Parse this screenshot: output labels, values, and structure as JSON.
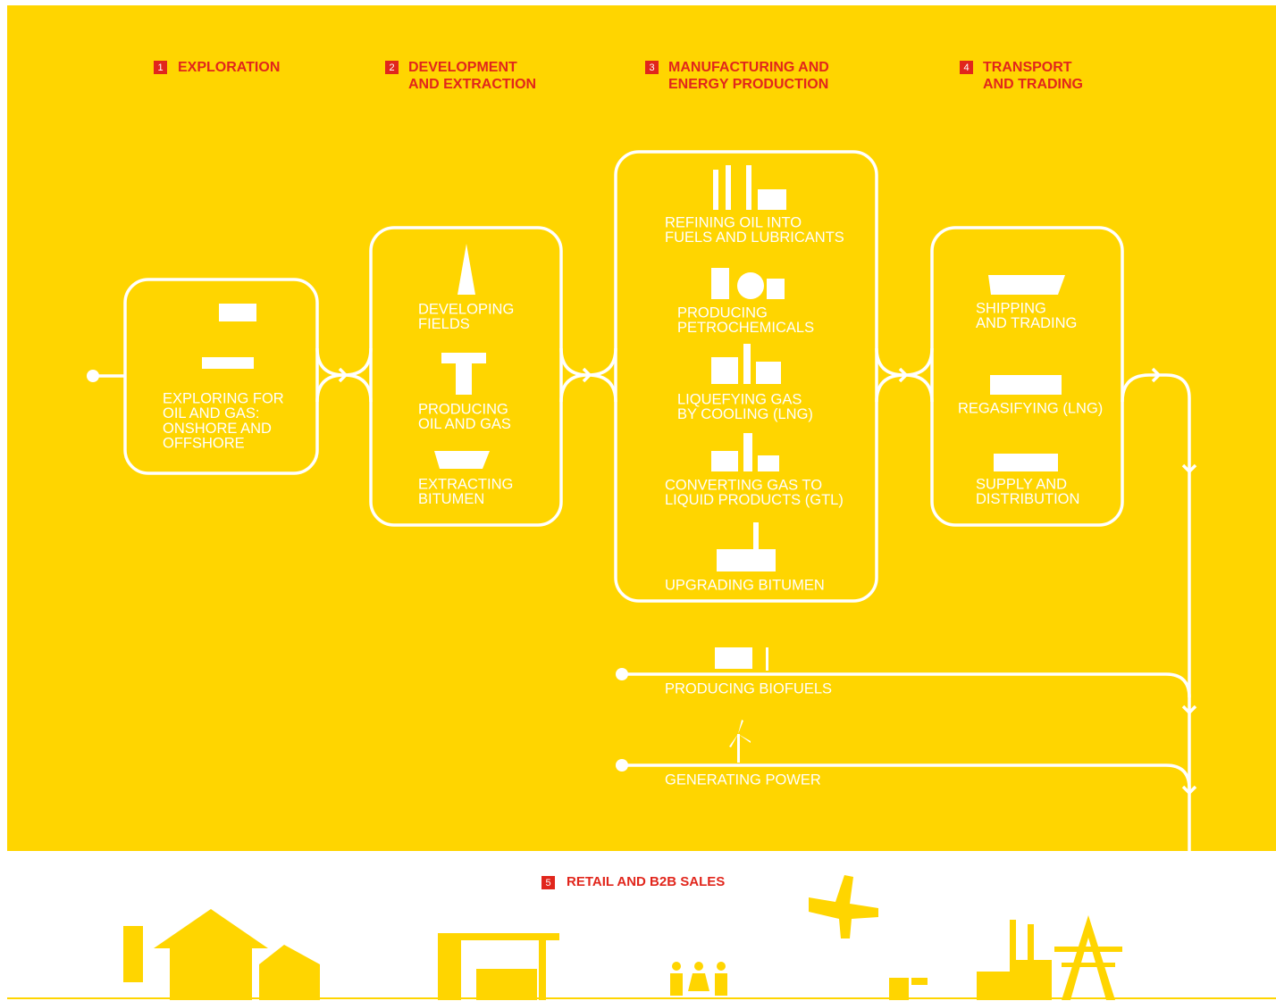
{
  "stages": [
    {
      "number": "1",
      "lines": [
        "EXPLORATION"
      ]
    },
    {
      "number": "2",
      "lines": [
        "DEVELOPMENT",
        "AND EXTRACTION"
      ]
    },
    {
      "number": "3",
      "lines": [
        "MANUFACTURING AND",
        "ENERGY PRODUCTION"
      ]
    },
    {
      "number": "4",
      "lines": [
        "TRANSPORT",
        "AND TRADING"
      ]
    }
  ],
  "boxes": [
    {
      "items": [
        {
          "lines": [
            "EXPLORING FOR",
            "OIL AND GAS:",
            "ONSHORE AND",
            "OFFSHORE"
          ]
        }
      ]
    },
    {
      "items": [
        {
          "lines": [
            "DEVELOPING",
            "FIELDS"
          ]
        },
        {
          "lines": [
            "PRODUCING",
            "OIL AND GAS"
          ]
        },
        {
          "lines": [
            "EXTRACTING",
            "BITUMEN"
          ]
        }
      ]
    },
    {
      "items": [
        {
          "lines": [
            "REFINING OIL INTO",
            "FUELS AND LUBRICANTS"
          ]
        },
        {
          "lines": [
            "PRODUCING",
            "PETROCHEMICALS"
          ]
        },
        {
          "lines": [
            "LIQUEFYING GAS",
            "BY COOLING (LNG)"
          ]
        },
        {
          "lines": [
            "CONVERTING GAS TO",
            "LIQUID PRODUCTS (GTL)"
          ]
        },
        {
          "lines": [
            "UPGRADING BITUMEN"
          ]
        }
      ]
    },
    {
      "items": [
        {
          "lines": [
            "SHIPPING",
            "AND TRADING"
          ]
        },
        {
          "lines": [
            "REGASIFYING (LNG)"
          ]
        },
        {
          "lines": [
            "SUPPLY AND",
            "DISTRIBUTION"
          ]
        }
      ]
    }
  ],
  "branches": [
    "PRODUCING BIOFUELS",
    "GENERATING POWER"
  ],
  "retail": {
    "number": "5",
    "title": "RETAIL AND B2B SALES"
  }
}
